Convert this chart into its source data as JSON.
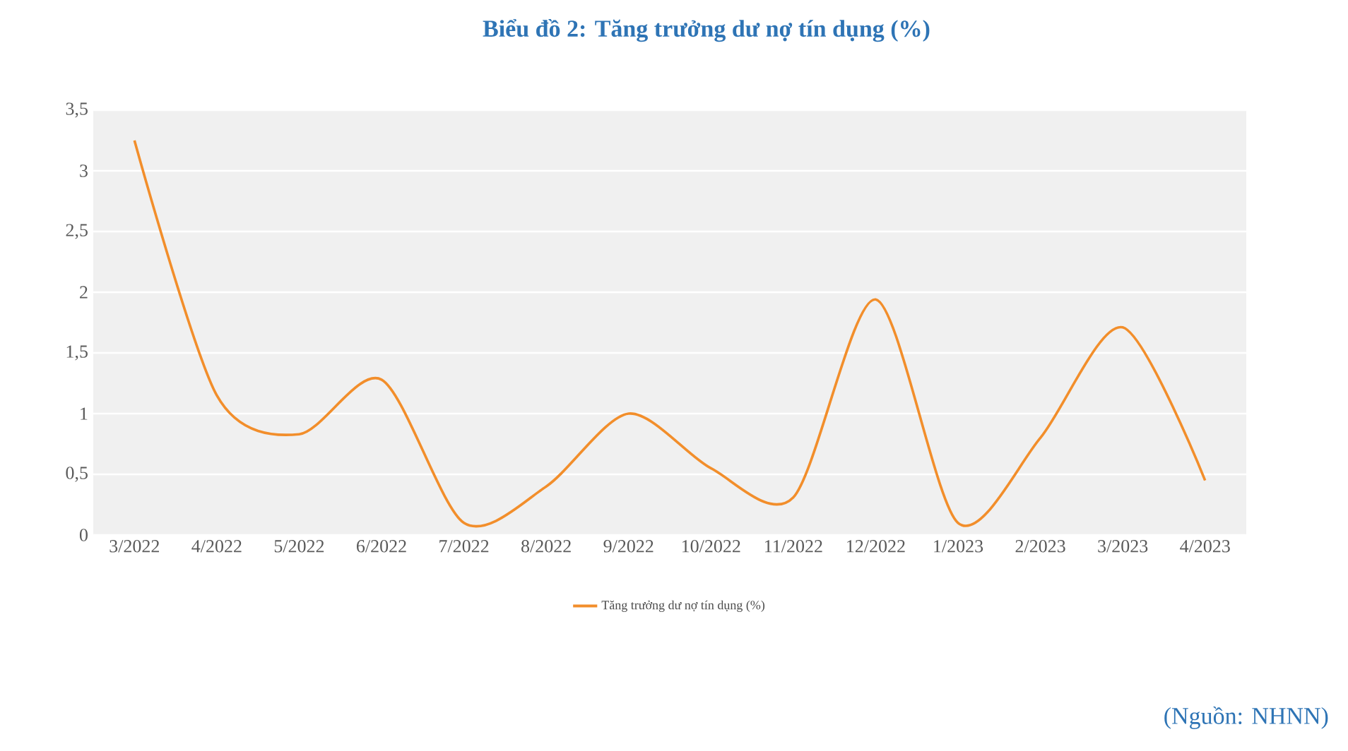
{
  "chart_data": {
    "type": "line",
    "title": "Biểu đồ 2: Tăng trưởng dư nợ tín dụng (%)",
    "categories": [
      "3/2022",
      "4/2022",
      "5/2022",
      "6/2022",
      "7/2022",
      "8/2022",
      "9/2022",
      "10/2022",
      "11/2022",
      "12/2022",
      "1/2023",
      "2/2023",
      "3/2023",
      "4/2023"
    ],
    "series": [
      {
        "name": "Tăng trưởng dư nợ tín dụng (%)",
        "color": "#f28e2b",
        "values": [
          3.25,
          1.15,
          0.83,
          1.28,
          0.1,
          0.4,
          1.0,
          0.55,
          0.31,
          1.94,
          0.1,
          0.8,
          1.71,
          0.45
        ]
      }
    ],
    "ylim": [
      0,
      3.5
    ],
    "yticks": [
      0,
      {
        "value": 0.5,
        "label": "0,5"
      },
      1,
      {
        "value": 1.5,
        "label": "1,5"
      },
      2,
      {
        "value": 2.5,
        "label": "2,5"
      },
      3,
      {
        "value": 3.5,
        "label": "3,5"
      }
    ],
    "grid": "y",
    "legend": "bottom",
    "marker": "none",
    "line_style": "solid",
    "annotations": [
      "(Nguồn: NHNN)"
    ]
  }
}
